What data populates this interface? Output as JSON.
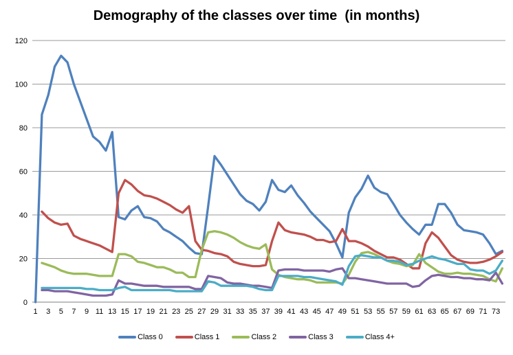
{
  "page": {
    "background": "#ffffff"
  },
  "chart_data": {
    "type": "line",
    "title": "Demography of the classes over time  (in months)",
    "x_axis": {
      "range": [
        1,
        74
      ],
      "tick_labels": [
        "1",
        "3",
        "5",
        "7",
        "9",
        "11",
        "13",
        "15",
        "17",
        "19",
        "21",
        "23",
        "25",
        "27",
        "29",
        "31",
        "33",
        "35",
        "37",
        "39",
        "41",
        "43",
        "45",
        "47",
        "49",
        "51",
        "53",
        "55",
        "57",
        "59",
        "61",
        "63",
        "65",
        "67",
        "69",
        "71",
        "73"
      ]
    },
    "y_axis": {
      "ticks": [
        0,
        20,
        40,
        60,
        80,
        100,
        120
      ],
      "lim": [
        0,
        120
      ]
    },
    "grid": true,
    "legend_position": "bottom",
    "colors": {
      "grid": "#9a9a9a",
      "axis": "#7f7f7f",
      "text": "#000000",
      "background": "#ffffff"
    },
    "series": [
      {
        "name": "Class 0",
        "color": "#4F81BD",
        "values": [
          0,
          86,
          95,
          108,
          113,
          110,
          100,
          92,
          84,
          76,
          73.5,
          69.5,
          78,
          39,
          38,
          42,
          44,
          39,
          38.5,
          37,
          33.5,
          32,
          30,
          28,
          25,
          22.5,
          22,
          44,
          67,
          63,
          58.5,
          54,
          49.5,
          46.5,
          45,
          42,
          46,
          56,
          51.5,
          50.5,
          53.5,
          49,
          45.5,
          41.5,
          38.5,
          35.5,
          32.5,
          27,
          20.5,
          41,
          48,
          52,
          58,
          52.5,
          50.5,
          49.5,
          45,
          40,
          36.5,
          33.5,
          31,
          35.5,
          35.5,
          45,
          45,
          41,
          35.5,
          33,
          32.5,
          32,
          31,
          27,
          22,
          23.5
        ]
      },
      {
        "name": "Class 1",
        "color": "#C0504D",
        "values": [
          null,
          41.5,
          38.5,
          36.5,
          35.5,
          36,
          30.5,
          29,
          28,
          27,
          26,
          24.5,
          23,
          50,
          56,
          54,
          51,
          49,
          48.5,
          47.5,
          46,
          44.5,
          42.5,
          41,
          44,
          28,
          24,
          23.5,
          22.5,
          22,
          21,
          18.5,
          17.5,
          17,
          16.5,
          16.5,
          17,
          28,
          36.5,
          33,
          32,
          31.5,
          31,
          30,
          28.5,
          28.5,
          27.5,
          28,
          33.5,
          28,
          28,
          27,
          25.5,
          23.5,
          22,
          20.5,
          20.5,
          19.5,
          17.5,
          15.5,
          15.5,
          27,
          32,
          29.5,
          25.5,
          21.5,
          19.5,
          18.5,
          18,
          18,
          18.5,
          19.5,
          21,
          23
        ]
      },
      {
        "name": "Class 2",
        "color": "#9BBB59",
        "values": [
          null,
          18,
          17,
          16,
          14.5,
          13.5,
          13,
          13,
          13,
          12.5,
          12,
          12,
          12,
          22,
          22,
          21,
          18.5,
          18,
          17,
          16,
          16,
          15,
          13.5,
          13.5,
          11.5,
          11.5,
          24,
          32,
          32.5,
          32,
          31,
          29.5,
          27.5,
          26,
          25,
          24.5,
          26.5,
          15,
          12.5,
          11.5,
          11,
          10.5,
          10.5,
          10,
          9,
          9,
          9,
          9,
          8.5,
          12.5,
          18.5,
          22.5,
          23,
          22,
          20.5,
          19,
          18,
          17.5,
          16.5,
          17,
          22,
          18,
          16,
          14,
          13,
          13,
          13.5,
          13,
          13,
          12.5,
          12,
          10.5,
          9.5,
          15.5
        ]
      },
      {
        "name": "Class 3",
        "color": "#8064A2",
        "values": [
          null,
          5.5,
          5.5,
          5,
          5,
          5,
          4.5,
          4,
          3.5,
          3,
          3,
          3,
          3.5,
          10,
          8.5,
          8.5,
          8,
          7.5,
          7.5,
          7.5,
          7,
          7,
          7,
          7,
          7,
          6,
          6,
          12,
          11.5,
          11,
          9,
          8.5,
          8.5,
          8,
          7.5,
          7.5,
          7,
          6.5,
          14.5,
          15,
          15,
          15,
          14.5,
          14.5,
          14.5,
          14.5,
          14,
          15,
          15.5,
          11,
          11,
          10.5,
          10,
          9.5,
          9,
          8.5,
          8.5,
          8.5,
          8.5,
          7,
          7.5,
          10,
          12,
          12.5,
          12,
          11.5,
          11.5,
          11,
          11,
          10.5,
          10.5,
          10,
          13.5,
          8.5
        ]
      },
      {
        "name": "Class 4+",
        "color": "#4BACC6",
        "values": [
          null,
          6.5,
          6.5,
          6.5,
          6.5,
          6.5,
          6.5,
          6.5,
          6,
          6,
          5.5,
          5.5,
          5.5,
          6.5,
          7,
          5.5,
          5.5,
          5.5,
          5.5,
          5.5,
          5.5,
          5.5,
          5,
          5,
          5,
          5,
          5,
          9.5,
          9,
          7.5,
          7.5,
          7.5,
          7.5,
          7.5,
          7,
          6,
          5.5,
          5.5,
          12,
          12,
          12,
          12,
          11.5,
          11.5,
          11,
          10.5,
          10,
          9.5,
          8,
          16.5,
          21,
          21.5,
          21,
          20.5,
          20.5,
          19,
          19,
          18.5,
          17,
          17.5,
          19,
          20,
          21,
          20,
          19.5,
          18.5,
          17.5,
          17.5,
          15,
          14.5,
          14.5,
          13,
          14.5,
          19
        ]
      }
    ]
  }
}
